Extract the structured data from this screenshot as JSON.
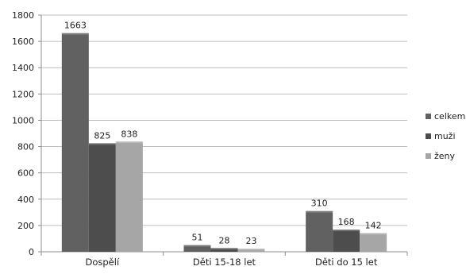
{
  "chart_data": {
    "type": "bar",
    "title": "",
    "xlabel": "",
    "ylabel": "",
    "categories": [
      "Dospělí",
      "Děti 15-18 let",
      "Děti do 15 let"
    ],
    "series": [
      {
        "name": "celkem",
        "values": [
          1663,
          51,
          310
        ],
        "color": "#616161"
      },
      {
        "name": "muži",
        "values": [
          825,
          28,
          168
        ],
        "color": "#4d4d4d"
      },
      {
        "name": "ženy",
        "values": [
          838,
          23,
          142
        ],
        "color": "#a6a6a6"
      }
    ],
    "ylim": [
      0,
      1800
    ],
    "yticks": [
      0,
      200,
      400,
      600,
      800,
      1000,
      1200,
      1400,
      1600,
      1800
    ],
    "grid": true,
    "legend_position": "right",
    "data_labels": true
  }
}
